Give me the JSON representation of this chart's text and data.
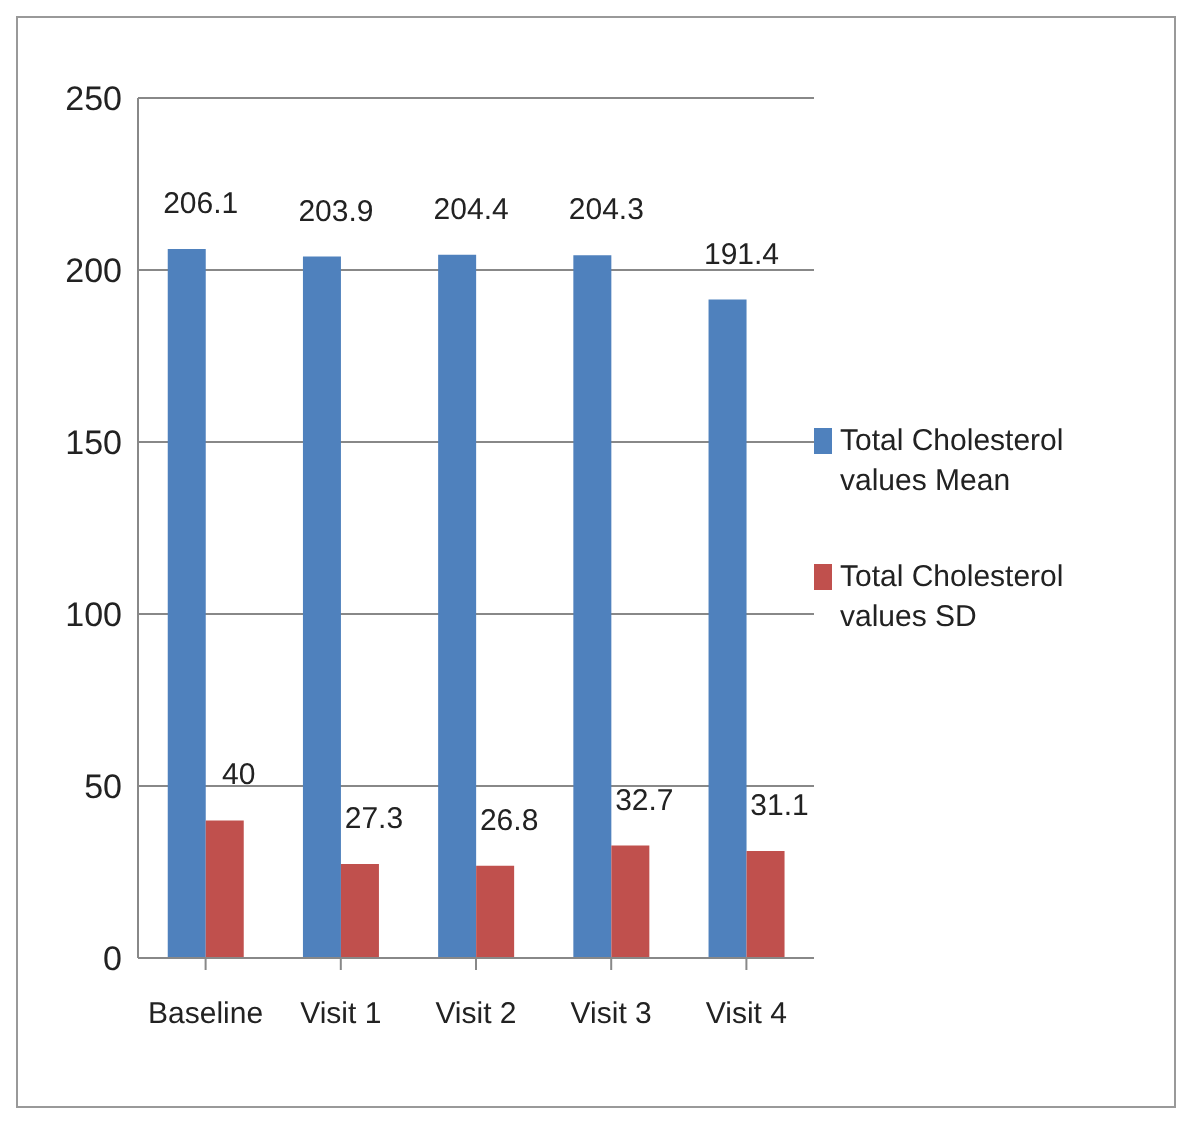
{
  "chart_data": {
    "type": "bar",
    "categories": [
      "Baseline",
      "Visit 1",
      "Visit 2",
      "Visit 3",
      "Visit 4"
    ],
    "series": [
      {
        "name": "Total Cholesterol values Mean",
        "color": "#4f81bd",
        "values": [
          206.1,
          203.9,
          204.4,
          204.3,
          191.4
        ]
      },
      {
        "name": "Total Cholesterol values SD",
        "color": "#c0504d",
        "values": [
          40,
          27.3,
          26.8,
          32.7,
          31.1
        ]
      }
    ],
    "ylim": [
      0,
      250
    ],
    "yticks": [
      0,
      50,
      100,
      150,
      200,
      250
    ],
    "grid": "y",
    "legend": "right",
    "data_labels": true
  }
}
